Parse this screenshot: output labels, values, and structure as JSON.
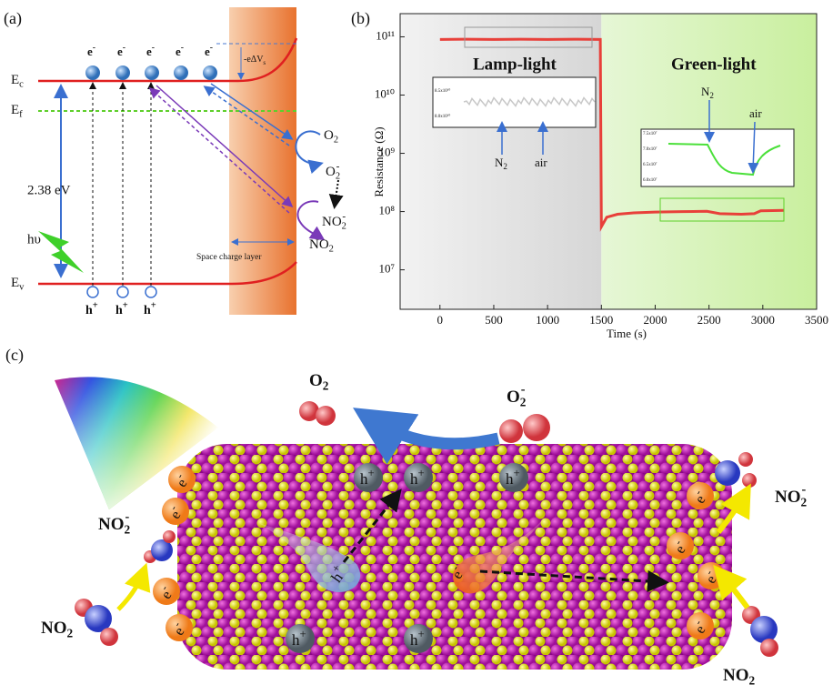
{
  "panel_a": {
    "label": "(a)",
    "ec": {
      "text": "E",
      "sub": "c"
    },
    "ef": {
      "text": "E",
      "sub": "f"
    },
    "ev": {
      "text": "E",
      "sub": "v"
    },
    "electrons": [
      {
        "text": "e",
        "sup": "-"
      },
      {
        "text": "e",
        "sup": "-"
      },
      {
        "text": "e",
        "sup": "-"
      },
      {
        "text": "e",
        "sup": "-"
      },
      {
        "text": "e",
        "sup": "-"
      }
    ],
    "holes": [
      {
        "text": "h",
        "sup": "+"
      },
      {
        "text": "h",
        "sup": "+"
      },
      {
        "text": "h",
        "sup": "+"
      }
    ],
    "band_bending": {
      "text": "-eΔV",
      "sub": "s"
    },
    "band_gap": "2.38 eV",
    "photon": "hυ",
    "o2": {
      "text": "O",
      "sub": "2"
    },
    "o2_minus": {
      "text": "O",
      "sub": "2",
      "sup": "-"
    },
    "no2_minus": {
      "text": "NO",
      "sub": "2",
      "sup": "-"
    },
    "no2": {
      "text": "NO",
      "sub": "2"
    },
    "space_charge": "Space charge layer"
  },
  "chart_data": {
    "type": "line",
    "panel_label": "(b)",
    "x_label": "Time (s)",
    "y_label": "Resistance (Ω)",
    "x": [
      0,
      250,
      500,
      750,
      1000,
      1250,
      1490,
      1500,
      1550,
      1650,
      1800,
      2000,
      2250,
      2480,
      2600,
      2800,
      2920,
      2980,
      3200
    ],
    "values": [
      90000000000,
      91000000000,
      90000000000,
      91000000000,
      90000000000,
      91000000000,
      90000000000,
      55000000,
      80000000,
      90000000,
      95000000,
      98000000,
      100000000,
      101000000,
      92000000,
      90000000,
      92000000,
      103000000,
      105000000
    ],
    "color": "#e8403a",
    "log_y": true,
    "xlim": [
      -370,
      3500
    ],
    "ylim": [
      2100000,
      250000000000
    ],
    "xticks": [
      0,
      500,
      1000,
      1500,
      2000,
      2500,
      3000,
      3500
    ],
    "yticks": [
      {
        "value": 10000000,
        "label": "10⁷"
      },
      {
        "value": 100000000,
        "label": "10⁸"
      },
      {
        "value": 1000000000,
        "label": "10⁹"
      },
      {
        "value": 10000000000,
        "label": "10¹⁰"
      },
      {
        "value": 100000000000,
        "label": "10¹¹"
      }
    ],
    "annotations": [
      "Lamp-light",
      "Green-light"
    ],
    "insets": [
      {
        "yticks": [
          "8.5x10¹⁰",
          "8.0x10¹⁰"
        ],
        "labels": [
          {
            "text": "N",
            "sub": "2"
          },
          {
            "text": "air"
          }
        ]
      },
      {
        "yticks": [
          "7.5x10⁷",
          "7.0x10⁷",
          "6.5x10⁷",
          "6.0x10⁷"
        ],
        "labels": [
          {
            "text": "N",
            "sub": "2"
          },
          {
            "text": "air"
          }
        ]
      }
    ]
  },
  "panel_c": {
    "label": "(c)",
    "o2": {
      "text": "O",
      "sub": "2"
    },
    "o2_minus": {
      "text": "O",
      "sub": "2",
      "sup": "-"
    },
    "holes": [
      {
        "text": "h",
        "sup": "+"
      },
      {
        "text": "h",
        "sup": "+"
      },
      {
        "text": "h",
        "sup": "+"
      },
      {
        "text": "h",
        "sup": "+"
      },
      {
        "text": "h",
        "sup": "+"
      },
      {
        "text": "h",
        "sup": "+"
      }
    ],
    "electrons": [
      {
        "text": "e",
        "sup": "-"
      },
      {
        "text": "e",
        "sup": "-"
      },
      {
        "text": "e",
        "sup": "-"
      },
      {
        "text": "e",
        "sup": "-"
      },
      {
        "text": "e",
        "sup": "-"
      },
      {
        "text": "e",
        "sup": "-"
      },
      {
        "text": "e",
        "sup": "-"
      },
      {
        "text": "e",
        "sup": "-"
      },
      {
        "text": "e",
        "sup": "-"
      }
    ],
    "no2_minus_left": {
      "text": "NO",
      "sub": "2",
      "sup": "-"
    },
    "no2_left": {
      "text": "NO",
      "sub": "2"
    },
    "no2_minus_right": {
      "text": "NO",
      "sub": "2",
      "sup": "-"
    },
    "no2_right": {
      "text": "NO",
      "sub": "2"
    }
  }
}
